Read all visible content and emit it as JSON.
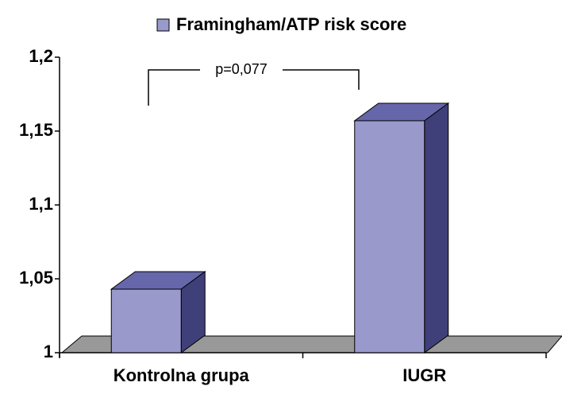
{
  "chart_data": {
    "type": "bar3d",
    "legend": "Framingham/ATP risk score",
    "annotation": "p=0,077",
    "categories": [
      "Kontrolna grupa",
      "IUGR"
    ],
    "series": [
      {
        "name": "Framingham/ATP risk score",
        "color": "#9999cc",
        "values": [
          1.043,
          1.157
        ]
      }
    ],
    "ylim": [
      1,
      1.2
    ],
    "yticks": [
      1,
      {
        "value": 1.05,
        "label": "1,05"
      },
      {
        "value": 1.1,
        "label": "1,1"
      },
      {
        "value": 1.15,
        "label": "1,15"
      },
      {
        "value": 1.2,
        "label": "1,2"
      }
    ]
  }
}
